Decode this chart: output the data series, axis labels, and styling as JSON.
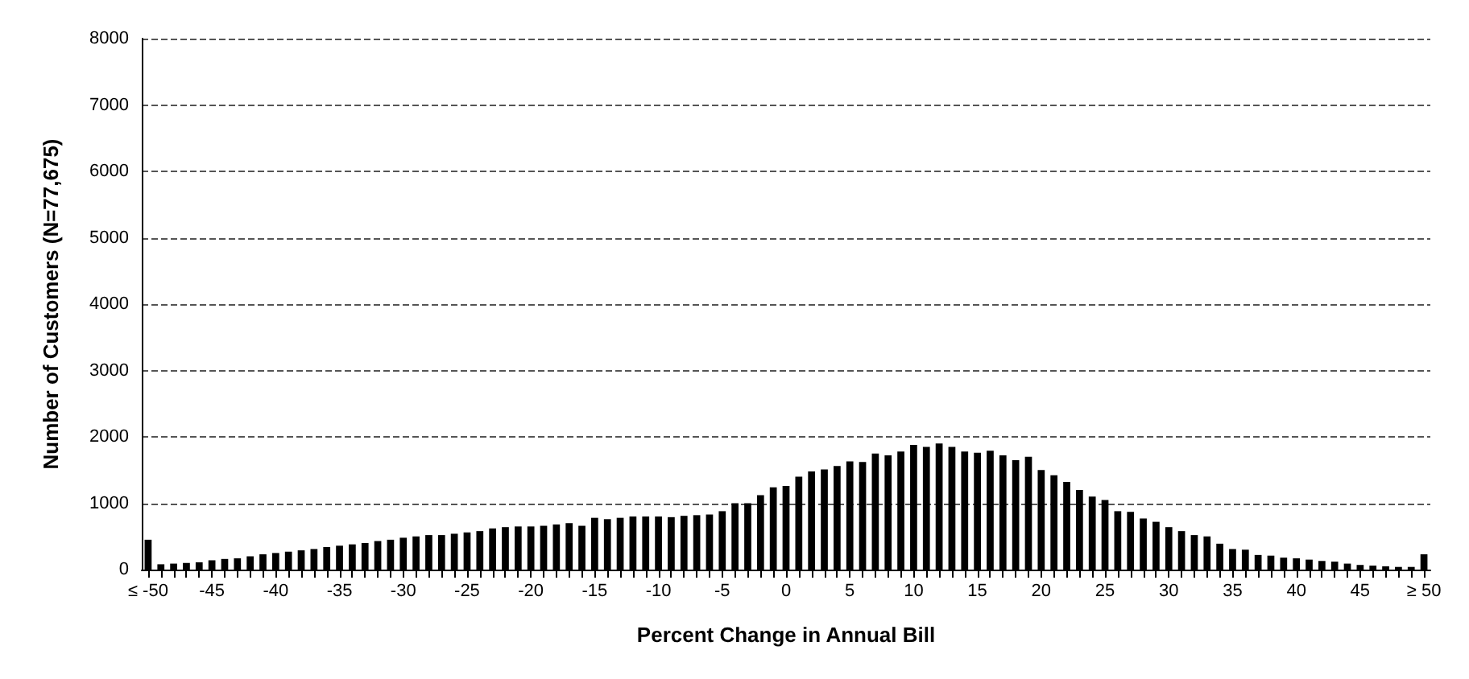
{
  "chart_data": {
    "type": "bar",
    "xlabel": "Percent Change in Annual Bill",
    "ylabel": "Number of Customers (N=77,675)",
    "categories": [
      "≤ -50",
      null,
      null,
      null,
      null,
      "-45",
      null,
      null,
      null,
      null,
      "-40",
      null,
      null,
      null,
      null,
      "-35",
      null,
      null,
      null,
      null,
      "-30",
      null,
      null,
      null,
      null,
      "-25",
      null,
      null,
      null,
      null,
      "-20",
      null,
      null,
      null,
      null,
      "-15",
      null,
      null,
      null,
      null,
      "-10",
      null,
      null,
      null,
      null,
      "-5",
      null,
      null,
      null,
      null,
      "0",
      null,
      null,
      null,
      null,
      "5",
      null,
      null,
      null,
      null,
      "10",
      null,
      null,
      null,
      null,
      "15",
      null,
      null,
      null,
      null,
      "20",
      null,
      null,
      null,
      null,
      "25",
      null,
      null,
      null,
      null,
      "30",
      null,
      null,
      null,
      null,
      "35",
      null,
      null,
      null,
      null,
      "40",
      null,
      null,
      null,
      null,
      "45",
      null,
      null,
      null,
      null,
      "≥ 50"
    ],
    "values": [
      450,
      80,
      90,
      100,
      110,
      140,
      160,
      170,
      200,
      230,
      250,
      270,
      290,
      310,
      340,
      360,
      380,
      400,
      430,
      450,
      480,
      500,
      520,
      520,
      540,
      560,
      580,
      620,
      640,
      650,
      650,
      660,
      680,
      700,
      660,
      780,
      760,
      780,
      800,
      800,
      800,
      790,
      810,
      820,
      830,
      880,
      1000,
      1000,
      1120,
      1240,
      1260,
      1400,
      1480,
      1510,
      1560,
      1630,
      1620,
      1750,
      1720,
      1780,
      1880,
      1850,
      1900,
      1850,
      1780,
      1760,
      1790,
      1720,
      1650,
      1700,
      1500,
      1420,
      1320,
      1200,
      1100,
      1050,
      880,
      870,
      770,
      720,
      640,
      580,
      520,
      500,
      390,
      310,
      300,
      220,
      210,
      180,
      170,
      150,
      130,
      120,
      90,
      70,
      60,
      50,
      40,
      40,
      230
    ],
    "color": "#000000",
    "ylim": [
      0,
      8000
    ],
    "yticks": [
      0,
      1000,
      2000,
      3000,
      4000,
      5000,
      6000,
      7000,
      8000
    ],
    "grid": "y"
  }
}
